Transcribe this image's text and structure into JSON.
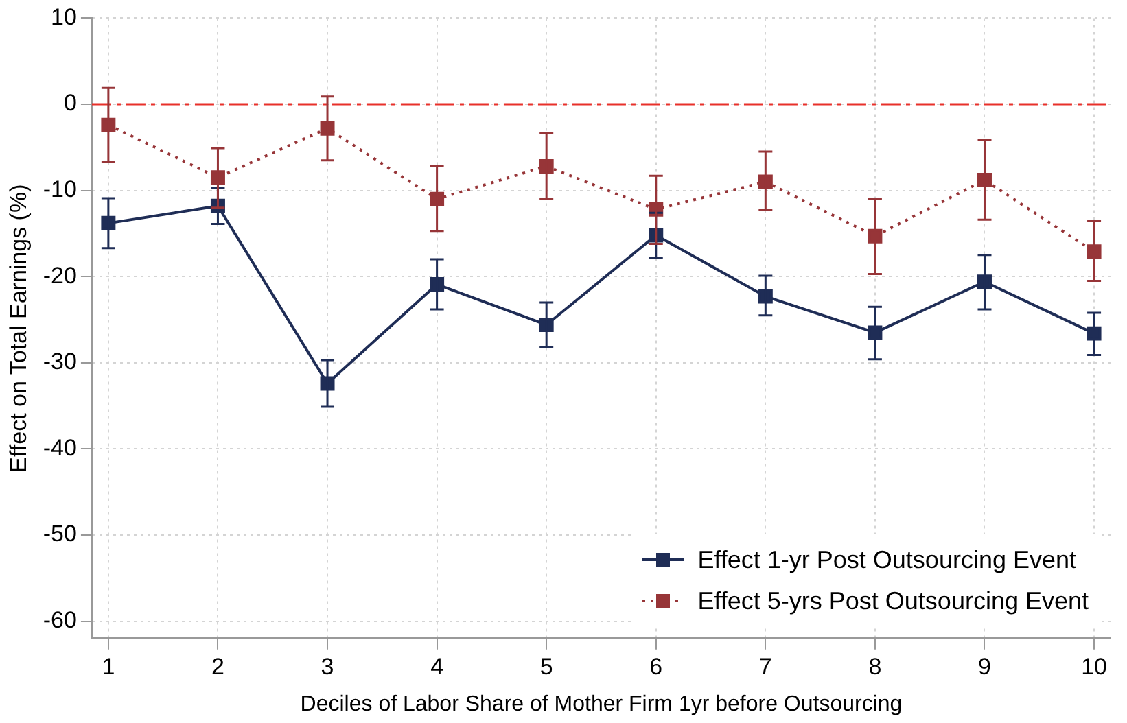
{
  "chart_data": {
    "type": "line",
    "xlabel": "Deciles of Labor Share of Mother Firm 1yr before Outsourcing",
    "ylabel": "Effect on Total Earnings (%)",
    "x": [
      1,
      2,
      3,
      4,
      5,
      6,
      7,
      8,
      9,
      10
    ],
    "series": [
      {
        "name": "Effect 1-yr Post Outsourcing Event",
        "color": "#1f2d56",
        "line_style": "solid",
        "marker": "square",
        "values": [
          -13.8,
          -11.8,
          -32.4,
          -20.9,
          -25.6,
          -15.2,
          -22.3,
          -26.5,
          -20.6,
          -26.6
        ],
        "errors": [
          [
            -16.7,
            -10.9
          ],
          [
            -13.9,
            -9.7
          ],
          [
            -35.1,
            -29.7
          ],
          [
            -23.8,
            -18.0
          ],
          [
            -28.2,
            -23.0
          ],
          [
            -17.8,
            -12.6
          ],
          [
            -24.5,
            -19.9
          ],
          [
            -29.6,
            -23.5
          ],
          [
            -23.8,
            -17.5
          ],
          [
            -29.1,
            -24.2
          ]
        ]
      },
      {
        "name": "Effect 5-yrs Post Outsourcing Event",
        "color": "#973538",
        "line_style": "dotted",
        "marker": "square",
        "values": [
          -2.4,
          -8.5,
          -2.8,
          -11.0,
          -7.2,
          -12.2,
          -9.0,
          -15.3,
          -8.8,
          -17.1
        ],
        "errors": [
          [
            -6.7,
            1.9
          ],
          [
            -12.0,
            -5.1
          ],
          [
            -6.5,
            0.9
          ],
          [
            -14.7,
            -7.2
          ],
          [
            -11.0,
            -3.3
          ],
          [
            -16.2,
            -8.3
          ],
          [
            -12.3,
            -5.5
          ],
          [
            -19.7,
            -11.0
          ],
          [
            -13.4,
            -4.1
          ],
          [
            -20.5,
            -13.5
          ]
        ]
      }
    ],
    "xlim": [
      0.85,
      10.15
    ],
    "xticks": [
      1,
      2,
      3,
      4,
      5,
      6,
      7,
      8,
      9,
      10
    ],
    "ylim": [
      -62,
      10
    ],
    "yticks": [
      10,
      0,
      -10,
      -20,
      -30,
      -40,
      -50,
      -60
    ],
    "ref_lines": [
      {
        "axis": "y",
        "value": 0,
        "color": "#e8302a",
        "line_style": "dashed"
      }
    ],
    "grid": true,
    "legend": "bottom right"
  }
}
